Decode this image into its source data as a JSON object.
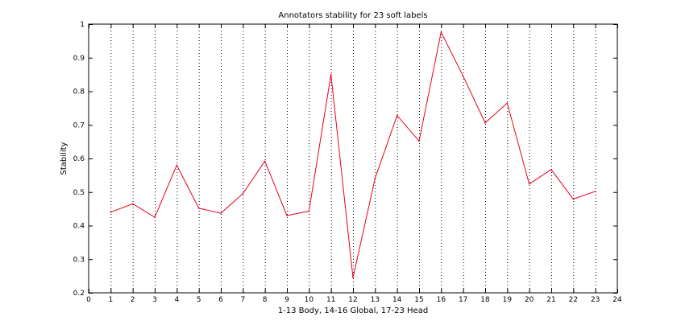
{
  "chart_data": {
    "type": "line",
    "title": "Annotators stability for 23 soft labels",
    "xlabel": "1-13 Body, 14-16 Global, 17-23 Head",
    "ylabel": "Stability",
    "xlim": [
      0,
      24
    ],
    "ylim": [
      0.2,
      1.0
    ],
    "xticks": [
      0,
      1,
      2,
      3,
      4,
      5,
      6,
      7,
      8,
      9,
      10,
      11,
      12,
      13,
      14,
      15,
      16,
      17,
      18,
      19,
      20,
      21,
      22,
      23,
      24
    ],
    "xtick_labels": [
      "0",
      "1",
      "2",
      "3",
      "4",
      "5",
      "6",
      "7",
      "8",
      "9",
      "10",
      "11",
      "12",
      "13",
      "14",
      "15",
      "16",
      "17",
      "18",
      "19",
      "20",
      "21",
      "22",
      "23",
      "24"
    ],
    "yticks": [
      0.2,
      0.3,
      0.4,
      0.5,
      0.6,
      0.7,
      0.8,
      0.9,
      1.0
    ],
    "ytick_labels": [
      "0.2",
      "0.3",
      "0.4",
      "0.5",
      "0.6",
      "0.7",
      "0.8",
      "0.9",
      "1"
    ],
    "grid": "x-dotted",
    "line_color": "#e8001c",
    "grid_color": "#000000",
    "series": [
      {
        "x": [
          1,
          2,
          3,
          4,
          5,
          6,
          7,
          8,
          9,
          10,
          11,
          12,
          13,
          14,
          15,
          16,
          17,
          18,
          19,
          20,
          21,
          22,
          23
        ],
        "values": [
          0.44,
          0.465,
          0.425,
          0.58,
          0.452,
          0.437,
          0.495,
          0.592,
          0.43,
          0.443,
          0.85,
          0.245,
          0.54,
          0.728,
          0.652,
          0.976,
          0.845,
          0.706,
          0.765,
          0.524,
          0.567,
          0.479,
          0.502
        ]
      }
    ]
  }
}
